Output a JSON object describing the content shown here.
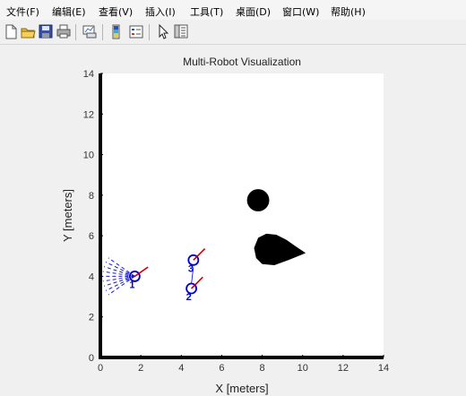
{
  "menu": [
    "文件(F)",
    "编辑(E)",
    "查看(V)",
    "插入(I)",
    "工具(T)",
    "桌面(D)",
    "窗口(W)",
    "帮助(H)"
  ],
  "toolbar_icons": [
    "new-file-icon",
    "open-folder-icon",
    "save-icon",
    "print-icon",
    "link-plot-icon",
    "colorbar-icon",
    "legend-icon",
    "pointer-icon",
    "property-inspector-icon"
  ],
  "chart_data": {
    "type": "scatter",
    "title": "Multi-Robot Visualization",
    "xlabel": "X [meters]",
    "ylabel": "Y [meters]",
    "xlim": [
      0,
      14
    ],
    "ylim": [
      0,
      14
    ],
    "xticks": [
      0,
      2,
      4,
      6,
      8,
      10,
      12,
      14
    ],
    "yticks": [
      0,
      2,
      4,
      6,
      8,
      10,
      12,
      14
    ],
    "grid": false,
    "robots": [
      {
        "id": "1",
        "x": 1.7,
        "y": 4.0,
        "heading_deg": 35,
        "has_lidar": true
      },
      {
        "id": "2",
        "x": 4.5,
        "y": 3.4,
        "heading_deg": 45,
        "has_lidar": false
      },
      {
        "id": "3",
        "x": 4.6,
        "y": 4.8,
        "heading_deg": 45,
        "has_lidar": false
      }
    ],
    "obstacles": [
      {
        "shape": "circle",
        "cx": 7.8,
        "cy": 7.75,
        "r": 0.55
      },
      {
        "shape": "blob",
        "points": [
          [
            7.6,
            5.4
          ],
          [
            7.8,
            5.9
          ],
          [
            8.2,
            6.1
          ],
          [
            8.7,
            6.05
          ],
          [
            9.2,
            5.8
          ],
          [
            9.7,
            5.45
          ],
          [
            10.15,
            5.15
          ],
          [
            9.9,
            5.05
          ],
          [
            9.3,
            4.8
          ],
          [
            8.6,
            4.55
          ],
          [
            8.0,
            4.6
          ],
          [
            7.7,
            4.9
          ]
        ]
      }
    ],
    "colors": {
      "robot": "#0000cc",
      "heading": "#cc0000",
      "lidar": "#1a1acc",
      "obstacle": "#000000",
      "axes_bg": "#ffffff"
    }
  }
}
